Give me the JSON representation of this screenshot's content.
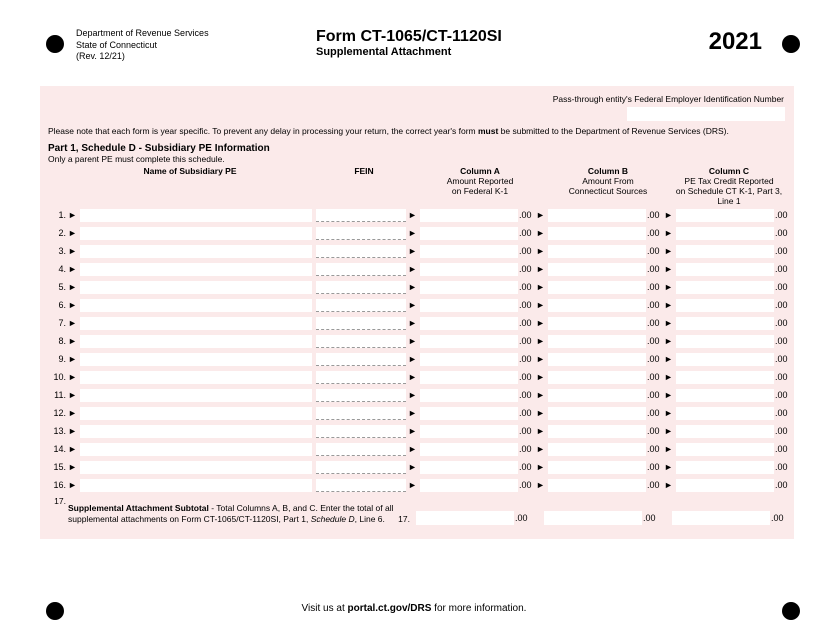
{
  "header": {
    "dept1": "Department of Revenue Services",
    "dept2": "State of Connecticut",
    "rev": "(Rev. 12/21)",
    "form_title": "Form CT-1065/CT-1120SI",
    "form_sub": "Supplemental Attachment",
    "year": "2021"
  },
  "fein_label": "Pass-through entity's Federal Employer Identification Number",
  "note_pre": "Please note that each form is year specific. To prevent any delay in processing your return, the correct year's form ",
  "note_bold": "must",
  "note_post": " be submitted to the Department of Revenue Services (DRS).",
  "part": {
    "title": "Part 1, Schedule D - Subsidiary PE Information",
    "sub": "Only a parent PE must complete this schedule.",
    "name_hdr": "Name of Subsidiary PE",
    "fein_hdr": "FEIN",
    "colA_t": "Column A",
    "colA_s": "Amount Reported\non Federal K-1",
    "colB_t": "Column B",
    "colB_s": "Amount From\nConnecticut Sources",
    "colC_t": "Column C",
    "colC_s": "PE Tax Credit Reported\non Schedule CT K-1, Part 3, Line 1"
  },
  "rows": [
    {
      "n": "1."
    },
    {
      "n": "2."
    },
    {
      "n": "3."
    },
    {
      "n": "4."
    },
    {
      "n": "5."
    },
    {
      "n": "6."
    },
    {
      "n": "7."
    },
    {
      "n": "8."
    },
    {
      "n": "9."
    },
    {
      "n": "10."
    },
    {
      "n": "11."
    },
    {
      "n": "12."
    },
    {
      "n": "13."
    },
    {
      "n": "14."
    },
    {
      "n": "15."
    },
    {
      "n": "16."
    }
  ],
  "suffix": ".00",
  "tri": "►",
  "subtotal": {
    "n": "17.",
    "bold": "Supplemental Attachment Subtotal",
    "rest": " - Total Columns A, B, and C. Enter the total of all supplemental attachments on Form CT-1065/CT-1120SI, Part 1, ",
    "ital": "Schedule D",
    "rest2": ", Line 6.",
    "n2": "17."
  },
  "footer": {
    "pre": "Visit us at ",
    "link": "portal.ct.gov/DRS",
    "post": " for more information."
  },
  "colors": {
    "bg_pink": "#fbeaea",
    "white": "#ffffff",
    "black": "#000000"
  }
}
